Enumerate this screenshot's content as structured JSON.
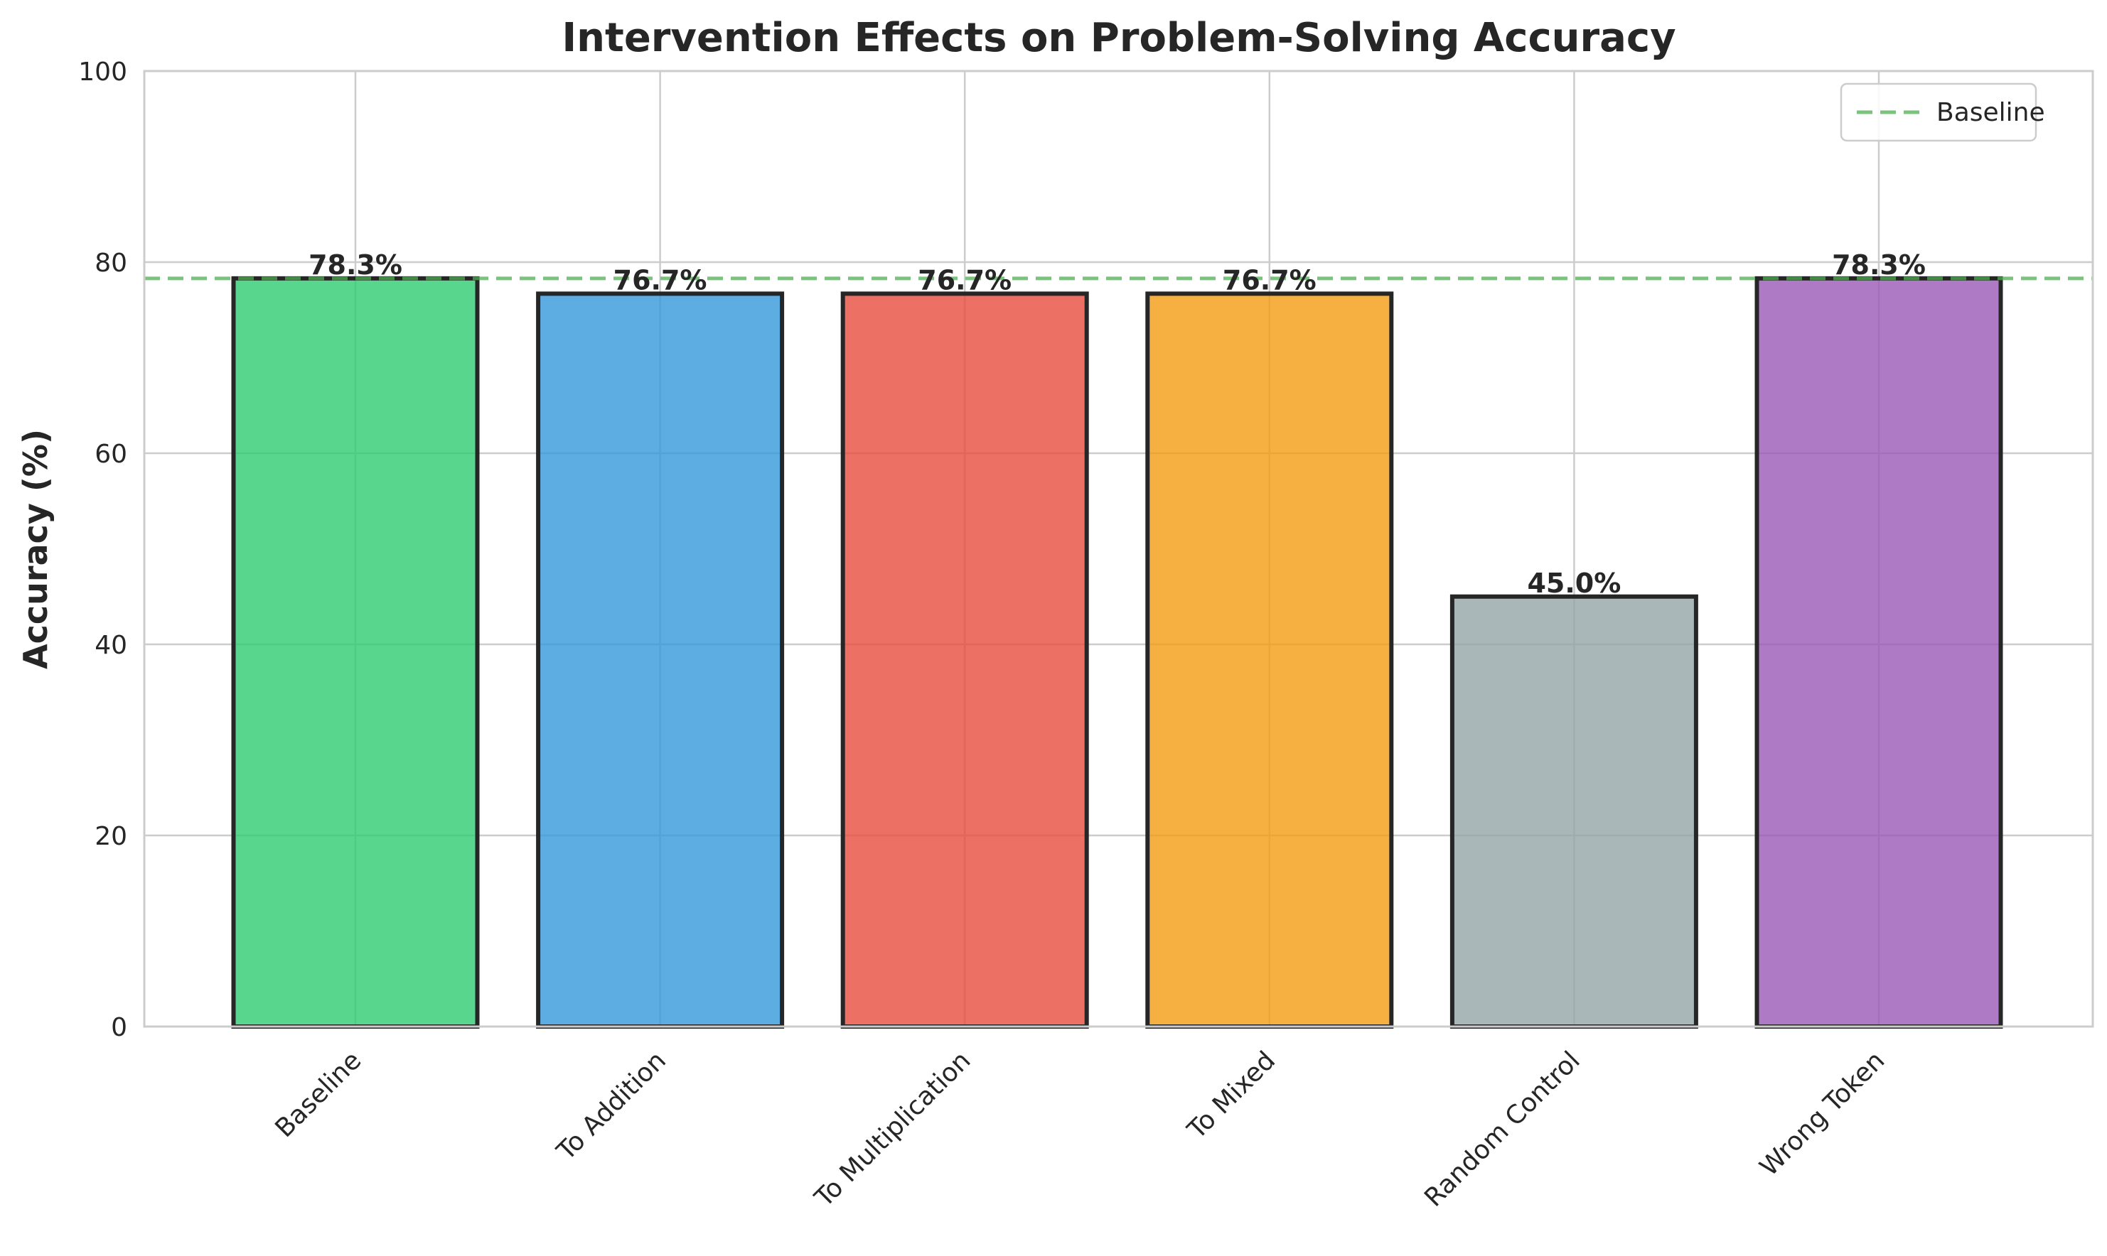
{
  "chart_data": {
    "type": "bar",
    "title": "Intervention Effects on Problem-Solving Accuracy",
    "xlabel": "",
    "ylabel": "Accuracy (%)",
    "ylim": [
      0,
      100
    ],
    "yticks": [
      0,
      20,
      40,
      60,
      80,
      100
    ],
    "grid": true,
    "legend_position": "top-right",
    "categories": [
      "Baseline",
      "To Addition",
      "To Multiplication",
      "To Mixed",
      "Random Control",
      "Wrong Token"
    ],
    "values": [
      78.3,
      76.7,
      76.7,
      76.7,
      45.0,
      78.3
    ],
    "data_labels": [
      "78.3%",
      "76.7%",
      "76.7%",
      "76.7%",
      "45.0%",
      "78.3%"
    ],
    "colors": [
      "#2ecc71",
      "#3498db",
      "#e74c3c",
      "#f39c12",
      "#95a5a6",
      "#9b59b6"
    ],
    "reference_line": {
      "name": "Baseline",
      "value": 78.3,
      "color": "#4caf50",
      "style": "dashed"
    }
  }
}
